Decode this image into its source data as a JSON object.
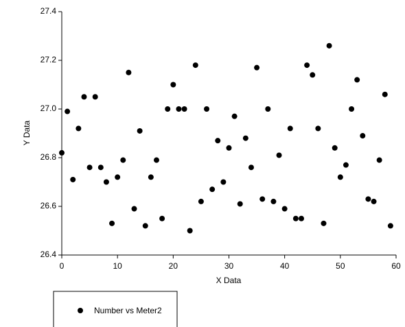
{
  "chart_data": {
    "type": "scatter",
    "x_label": "X Data",
    "y_label": "Y Data",
    "xlim": [
      0,
      60
    ],
    "xticks": [
      0,
      10,
      20,
      30,
      40,
      50,
      60
    ],
    "ylim": [
      26.4,
      27.4
    ],
    "yticks": [
      26.4,
      26.6,
      26.8,
      {
        "value": 27.0,
        "label": "27.0"
      },
      27.2,
      27.4
    ],
    "legend": "bottom-left",
    "series": [
      {
        "name": "Number vs Meter2",
        "color": "#000000",
        "x": [
          0,
          1,
          2,
          3,
          4,
          5,
          6,
          7,
          8,
          9,
          10,
          11,
          12,
          13,
          14,
          15,
          16,
          17,
          18,
          19,
          20,
          21,
          22,
          23,
          24,
          25,
          26,
          27,
          28,
          29,
          30,
          31,
          32,
          33,
          34,
          35,
          36,
          37,
          38,
          39,
          40,
          41,
          42,
          43,
          44,
          45,
          46,
          47,
          48,
          49,
          50,
          51,
          52,
          53,
          54,
          55,
          56,
          57,
          58,
          59
        ],
        "values": [
          26.82,
          26.99,
          26.71,
          26.92,
          27.05,
          26.76,
          27.05,
          26.76,
          26.7,
          26.53,
          26.72,
          26.79,
          27.15,
          26.59,
          26.91,
          26.52,
          26.72,
          26.79,
          26.55,
          27.0,
          27.1,
          27.0,
          27.0,
          26.5,
          27.18,
          26.62,
          27.0,
          26.67,
          26.87,
          26.7,
          26.84,
          26.97,
          26.61,
          26.88,
          26.76,
          27.17,
          26.63,
          27.0,
          26.62,
          26.81,
          26.59,
          26.92,
          26.55,
          26.55,
          27.18,
          27.14,
          26.92,
          26.53,
          27.26,
          26.84,
          26.72,
          26.77,
          27.0,
          27.12,
          26.89,
          26.63,
          26.62,
          26.79,
          27.06,
          26.52
        ]
      }
    ]
  }
}
